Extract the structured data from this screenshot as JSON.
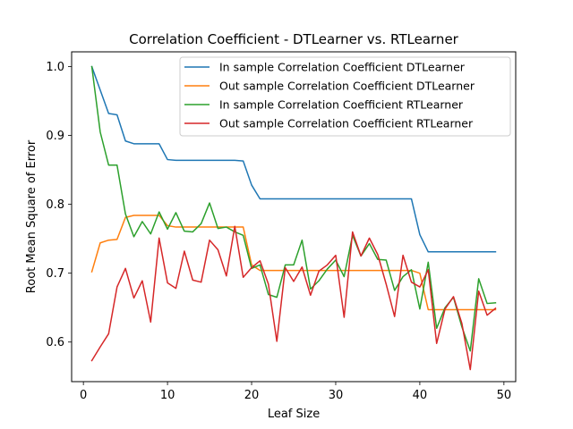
{
  "chart_data": {
    "type": "line",
    "title": "Correlation Coefficient - DTLearner vs. RTLearner",
    "xlabel": "Leaf Size",
    "ylabel": "Root Mean Square of Error",
    "xlim": [
      -1.4,
      51.4
    ],
    "ylim": [
      0.5425,
      1.0215
    ],
    "xticks": [
      0,
      10,
      20,
      30,
      40,
      50
    ],
    "yticks": [
      0.6,
      0.7,
      0.8,
      0.9,
      1.0
    ],
    "ytick_labels": [
      "0.6",
      "0.7",
      "0.8",
      "0.9",
      "1.0"
    ],
    "legend_position": "top-right",
    "grid": false,
    "x": [
      1,
      2,
      3,
      4,
      5,
      6,
      7,
      8,
      9,
      10,
      11,
      12,
      13,
      14,
      15,
      16,
      17,
      18,
      19,
      20,
      21,
      22,
      23,
      24,
      25,
      26,
      27,
      28,
      29,
      30,
      31,
      32,
      33,
      34,
      35,
      36,
      37,
      38,
      39,
      40,
      41,
      42,
      43,
      44,
      45,
      46,
      47,
      48,
      49
    ],
    "series": [
      {
        "name": "In sample Correlation Coefficient DTLearner",
        "color": "#1f77b4",
        "values": [
          1.0,
          0.966,
          0.932,
          0.93,
          0.892,
          0.888,
          0.888,
          0.888,
          0.888,
          0.865,
          0.864,
          0.864,
          0.864,
          0.864,
          0.864,
          0.864,
          0.864,
          0.864,
          0.863,
          0.828,
          0.808,
          0.808,
          0.808,
          0.808,
          0.808,
          0.808,
          0.808,
          0.808,
          0.808,
          0.808,
          0.808,
          0.808,
          0.808,
          0.808,
          0.808,
          0.808,
          0.808,
          0.808,
          0.808,
          0.756,
          0.731,
          0.731,
          0.731,
          0.731,
          0.731,
          0.731,
          0.731,
          0.731,
          0.731
        ]
      },
      {
        "name": "Out sample Correlation Coefficient DTLearner",
        "color": "#ff7f0e",
        "values": [
          0.702,
          0.744,
          0.748,
          0.749,
          0.781,
          0.784,
          0.784,
          0.784,
          0.784,
          0.769,
          0.767,
          0.767,
          0.767,
          0.767,
          0.767,
          0.767,
          0.767,
          0.767,
          0.767,
          0.712,
          0.704,
          0.704,
          0.704,
          0.704,
          0.704,
          0.704,
          0.704,
          0.704,
          0.704,
          0.704,
          0.704,
          0.704,
          0.704,
          0.704,
          0.704,
          0.704,
          0.704,
          0.704,
          0.704,
          0.7,
          0.647,
          0.647,
          0.647,
          0.647,
          0.647,
          0.647,
          0.647,
          0.647,
          0.647
        ]
      },
      {
        "name": "In sample Correlation Coefficient RTLearner",
        "color": "#2ca02c",
        "values": [
          1.0,
          0.905,
          0.857,
          0.857,
          0.786,
          0.753,
          0.775,
          0.757,
          0.789,
          0.764,
          0.788,
          0.761,
          0.76,
          0.772,
          0.802,
          0.765,
          0.767,
          0.76,
          0.755,
          0.707,
          0.712,
          0.669,
          0.665,
          0.712,
          0.712,
          0.748,
          0.677,
          0.689,
          0.706,
          0.719,
          0.695,
          0.755,
          0.725,
          0.743,
          0.72,
          0.719,
          0.675,
          0.695,
          0.705,
          0.648,
          0.716,
          0.62,
          0.65,
          0.665,
          0.622,
          0.587,
          0.692,
          0.656,
          0.657
        ]
      },
      {
        "name": "Out sample Correlation Coefficient RTLearner",
        "color": "#d62728",
        "values": [
          0.573,
          0.593,
          0.612,
          0.68,
          0.707,
          0.664,
          0.689,
          0.629,
          0.751,
          0.686,
          0.678,
          0.732,
          0.69,
          0.687,
          0.748,
          0.734,
          0.696,
          0.768,
          0.694,
          0.708,
          0.718,
          0.684,
          0.601,
          0.708,
          0.688,
          0.709,
          0.668,
          0.703,
          0.712,
          0.726,
          0.636,
          0.76,
          0.725,
          0.751,
          0.727,
          0.684,
          0.637,
          0.726,
          0.687,
          0.68,
          0.705,
          0.598,
          0.648,
          0.666,
          0.627,
          0.56,
          0.674,
          0.639,
          0.649
        ]
      }
    ]
  }
}
